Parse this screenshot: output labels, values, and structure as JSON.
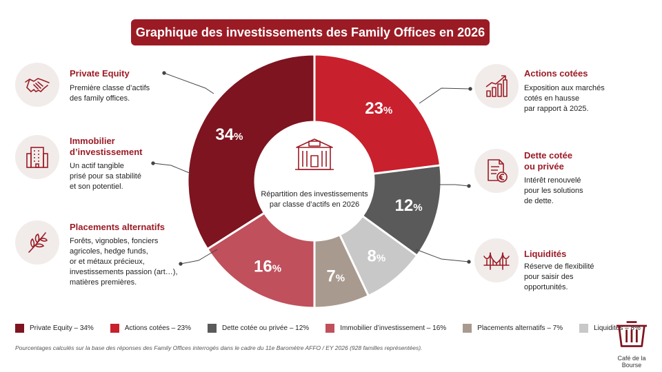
{
  "title": "Graphique des investissements des Family Offices en 2026",
  "center": {
    "line1": "Répartition des investissements",
    "line2": "par classe d’actifs en 2026",
    "icon": "building-icon"
  },
  "left_items": [
    {
      "title_lines": [
        "Private Equity"
      ],
      "desc_lines": [
        "Première classe d’actifs",
        "des family offices."
      ],
      "icon": "handshake-icon"
    },
    {
      "title_lines": [
        "Immobilier",
        "d’investissement"
      ],
      "desc_lines": [
        "Un actif tangible",
        "prisé pour sa stabilité",
        "et son potentiel."
      ],
      "icon": "office-building-icon"
    },
    {
      "title_lines": [
        "Placements alternatifs"
      ],
      "desc_lines": [
        "Forêts, vignobles, fonciers",
        "agricoles, hedge funds,",
        "or et métaux précieux,",
        "investissements passion (art…),",
        "matières premières."
      ],
      "icon": "leaf-branch-icon"
    }
  ],
  "right_items": [
    {
      "title_lines": [
        "Actions cotées"
      ],
      "desc_lines": [
        "Exposition aux marchés",
        "cotés en hausse",
        "par rapport à 2025."
      ],
      "icon": "growth-chart-icon"
    },
    {
      "title_lines": [
        "Dette cotée",
        "ou privée"
      ],
      "desc_lines": [
        "Intérêt renouvelé",
        "pour les solutions",
        "de dette."
      ],
      "icon": "euro-document-icon"
    },
    {
      "title_lines": [
        "Liquidités"
      ],
      "desc_lines": [
        "Réserve de flexibilité",
        "pour saisir des",
        "opportunités."
      ],
      "icon": "bridge-icon"
    }
  ],
  "chart_data": {
    "type": "pie",
    "donut": true,
    "slices": [
      {
        "name": "Actions cotées",
        "value": 23,
        "color": "#c8202d"
      },
      {
        "name": "Dette cotée ou privée",
        "value": 12,
        "color": "#5a5a5a"
      },
      {
        "name": "Liquidités",
        "value": 8,
        "color": "#c8c8c8"
      },
      {
        "name": "Placements alternatifs",
        "value": 7,
        "color": "#a99a8f"
      },
      {
        "name": "Immobilier d’investissement",
        "value": 16,
        "color": "#c0505c"
      },
      {
        "name": "Private Equity",
        "value": 34,
        "color": "#7d1420"
      }
    ],
    "unit": "%"
  },
  "legend": [
    {
      "label": "Private Equity – 34%",
      "color": "#7d1420"
    },
    {
      "label": "Actions cotées – 23%",
      "color": "#c8202d"
    },
    {
      "label": "Dette cotée ou privée – 12%",
      "color": "#5a5a5a"
    },
    {
      "label": "Immobilier d’investissement – 16%",
      "color": "#c0505c"
    },
    {
      "label": "Placements alternatifs – 7%",
      "color": "#a99a8f"
    },
    {
      "label": "Liquidités – 8%",
      "color": "#c8c8c8"
    }
  ],
  "footnote": "Pourcentages calculés sur la base des réponses des Family Offices interrogés dans le cadre du 11e Baromètre AFFO / EY 2026 (928 familles représentées).",
  "brand": {
    "label": "Café de la Bourse",
    "icon": "trash-can-icon"
  }
}
